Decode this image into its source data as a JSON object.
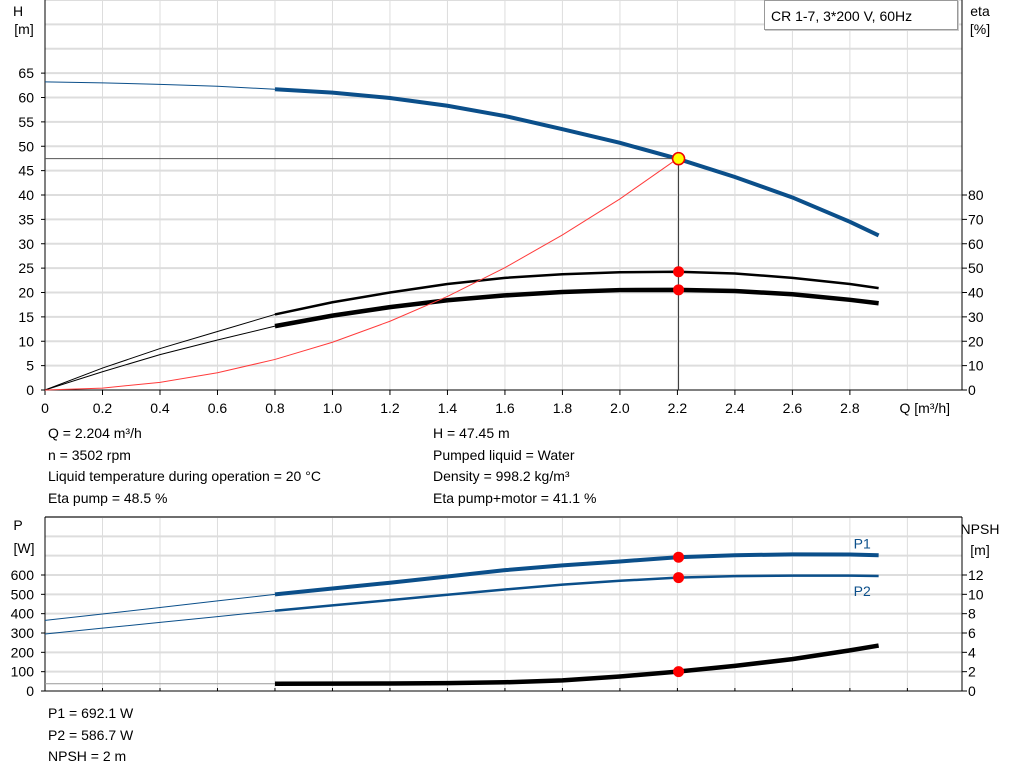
{
  "chart_data": [
    {
      "type": "line",
      "title": "CR 1-7, 3*200 V, 60Hz",
      "xlabel": "Q [m³/h]",
      "ylabel": "H\n[m]",
      "y2label": "eta\n[%]",
      "xlim": [
        0,
        3.19
      ],
      "ylim": [
        0,
        80
      ],
      "y2lim": [
        0,
        160
      ],
      "xticks": [
        "0",
        "0.2",
        "0.4",
        "0.6",
        "0.8",
        "1.0",
        "1.2",
        "1.4",
        "1.6",
        "1.8",
        "2.0",
        "2.2",
        "2.4",
        "2.6",
        "2.8"
      ],
      "yticks": [
        "0",
        "5",
        "10",
        "15",
        "20",
        "25",
        "30",
        "35",
        "40",
        "45",
        "50",
        "55",
        "60",
        "65"
      ],
      "y2ticks": [
        "0",
        "10",
        "20",
        "30",
        "40",
        "50",
        "60",
        "70",
        "80"
      ],
      "grid": true,
      "x": [
        0,
        0.2,
        0.4,
        0.6,
        0.8,
        1.0,
        1.2,
        1.4,
        1.6,
        1.8,
        2.0,
        2.2,
        2.4,
        2.6,
        2.8,
        2.9
      ],
      "series": [
        {
          "id": "head",
          "axis": "left",
          "color": "#0b4f8a",
          "values": [
            63.2,
            63.0,
            62.7,
            62.3,
            61.7,
            61.0,
            59.9,
            58.3,
            56.2,
            53.5,
            50.7,
            47.45,
            43.7,
            39.5,
            34.5,
            31.7
          ]
        },
        {
          "id": "eta-pump",
          "axis": "right",
          "color": "#000000",
          "values": [
            0,
            9,
            17,
            24,
            31,
            36,
            40,
            43.5,
            46,
            47.5,
            48.3,
            48.5,
            47.8,
            46,
            43.5,
            41.8
          ]
        },
        {
          "id": "eta-pump-motor",
          "axis": "right",
          "color": "#000000",
          "values": [
            0,
            7.5,
            14.5,
            20.5,
            26.2,
            30.5,
            34,
            36.8,
            38.8,
            40.2,
            41,
            41.1,
            40.6,
            39.3,
            37,
            35.6
          ]
        },
        {
          "id": "system-curve",
          "axis": "left",
          "color": "#ff3b3b",
          "x": [
            0,
            0.2,
            0.4,
            0.6,
            0.8,
            1.0,
            1.2,
            1.4,
            1.6,
            1.8,
            2.0,
            2.2
          ],
          "values": [
            0,
            0.39,
            1.57,
            3.53,
            6.27,
            9.8,
            14.1,
            19.2,
            25.1,
            31.8,
            39.2,
            47.45
          ]
        }
      ],
      "duty_point": {
        "Q": 2.204,
        "H": 47.45,
        "eta_pump": 48.5,
        "eta_pump_motor": 41.1
      }
    },
    {
      "type": "line",
      "ylabel": "P\n[W]",
      "y2label": "NPSH\n[m]",
      "xlim": [
        0,
        3.19
      ],
      "ylim": [
        0,
        900
      ],
      "y2lim": [
        0,
        18
      ],
      "yticks": [
        "0",
        "100",
        "200",
        "300",
        "400",
        "500",
        "600"
      ],
      "y2ticks": [
        "0",
        "2",
        "4",
        "6",
        "8",
        "10",
        "12"
      ],
      "grid": true,
      "x": [
        0,
        0.2,
        0.4,
        0.6,
        0.8,
        1.0,
        1.2,
        1.4,
        1.6,
        1.8,
        2.0,
        2.2,
        2.4,
        2.6,
        2.8,
        2.9
      ],
      "series": [
        {
          "id": "P1",
          "name": "P1",
          "axis": "left",
          "color": "#0b4f8a",
          "values": [
            365,
            398,
            432,
            466,
            500,
            530,
            560,
            592,
            625,
            650,
            670,
            692.1,
            702,
            707,
            706,
            702
          ]
        },
        {
          "id": "P2",
          "name": "P2",
          "axis": "left",
          "color": "#0b4f8a",
          "values": [
            295,
            325,
            355,
            385,
            415,
            443,
            470,
            498,
            525,
            550,
            570,
            586.7,
            594,
            597,
            597,
            595
          ]
        },
        {
          "id": "NPSH",
          "axis": "right",
          "color": "#000000",
          "values": [
            0.75,
            0.75,
            0.75,
            0.75,
            0.75,
            0.76,
            0.78,
            0.82,
            0.9,
            1.1,
            1.5,
            2.0,
            2.6,
            3.3,
            4.2,
            4.7
          ]
        }
      ],
      "duty_point": {
        "P1": 692.1,
        "P2": 586.7,
        "NPSH": 2
      }
    }
  ],
  "info_top_left": [
    "Q = 2.204 m³/h",
    "n = 3502 rpm",
    "Liquid temperature during operation = 20 °C",
    "Eta pump = 48.5 %"
  ],
  "info_top_right": [
    "H = 47.45 m",
    "Pumped liquid = Water",
    "Density = 998.2 kg/m³",
    "Eta pump+motor = 41.1 %"
  ],
  "info_bottom": [
    "P1 = 692.1 W",
    "P2 = 586.7 W",
    "NPSH = 2 m"
  ]
}
